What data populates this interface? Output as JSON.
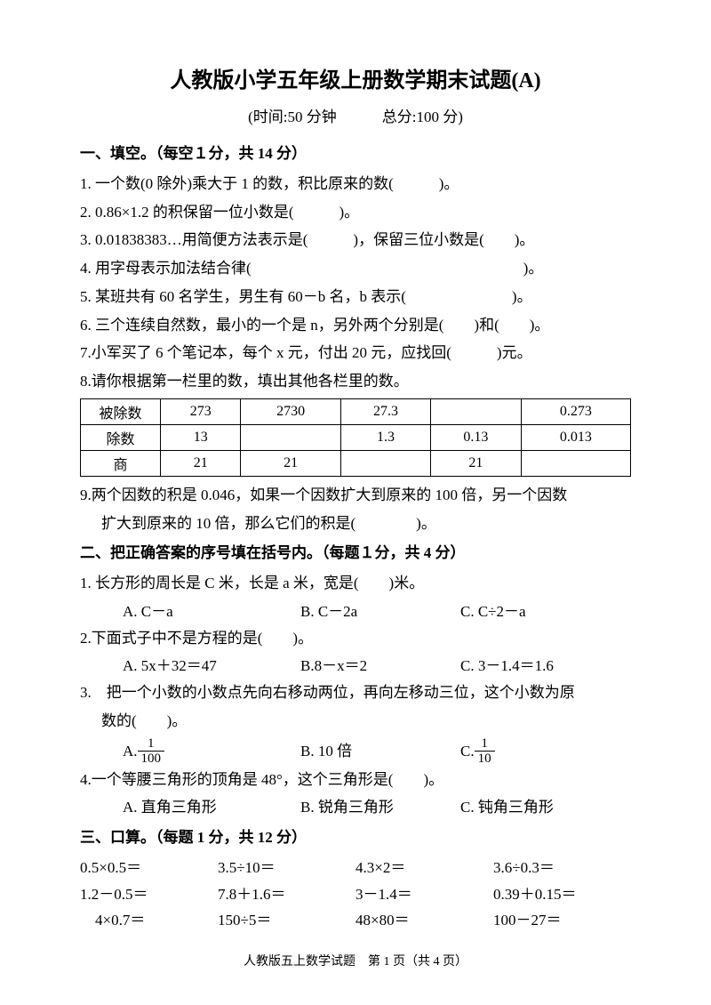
{
  "title": "人教版小学五年级上册数学期末试题(A)",
  "subtitle": "(时间:50 分钟　　　总分:100 分)",
  "sec1": {
    "header": "一、填空。（每空１分，共 14 分）",
    "q1": "1. 一个数(0 除外)乘大于 1 的数，积比原来的数(　　　)。",
    "q2": "2. 0.86×1.2 的积保留一位小数是(　　　)。",
    "q3": "3. 0.01838383…用简便方法表示是(　　　)，保留三位小数是(　　)。",
    "q4": "4. 用字母表示加法结合律(　　　　　　　　　　　　　　　　　　)。",
    "q5": "5. 某班共有 60 名学生，男生有 60－b 名，b 表示(　　　　　　　)。",
    "q6": "6. 三个连续自然数，最小的一个是 n，另外两个分别是(　　)和(　　)。",
    "q7": "7.小军买了 6 个笔记本，每个 x 元，付出 20 元，应找回(　　　)元。",
    "q8": "8.请你根据第一栏里的数，填出其他各栏里的数。",
    "q9a": "9.两个因数的积是 0.046，如果一个因数扩大到原来的 100 倍，另一个因数",
    "q9b": "扩大到原来的 10 倍，那么它们的积是(　　　　)。"
  },
  "table": {
    "r1": [
      "被除数",
      "273",
      "2730",
      "27.3",
      "",
      "0.273"
    ],
    "r2": [
      "除数",
      "13",
      "",
      "1.3",
      "0.13",
      "0.013"
    ],
    "r3": [
      "商",
      "21",
      "21",
      "",
      "21",
      ""
    ]
  },
  "sec2": {
    "header": "二、把正确答案的序号填在括号内。（每题１分，共 4 分）",
    "q1": "1. 长方形的周长是 C 米，长是 a 米，宽是(　　)米。",
    "q1a": "A. C－a",
    "q1b": "B. C－2a",
    "q1c": "C. C÷2－a",
    "q2": "2.下面式子中不是方程的是(　　)。",
    "q2a": "A. 5x＋32＝47",
    "q2b": "B.8－x＝2",
    "q2c": "C. 3－1.4＝1.6",
    "q3a": "3.　把一个小数的小数点先向右移动两位，再向左移动三位，这个小数为原",
    "q3b": "数的(　　)。",
    "q3optA": "A. ",
    "q3optB": "B. 10 倍",
    "q3optC": "C. ",
    "frac1n": "1",
    "frac1d": "100",
    "frac2n": "1",
    "frac2d": "10",
    "q4": "4.一个等腰三角形的顶角是 48°，这个三角形是(　　)。",
    "q4a": "A. 直角三角形",
    "q4b": "B. 锐角三角形",
    "q4c": "C. 钝角三角形"
  },
  "sec3": {
    "header": "三、口算。（每题 1 分，共 12 分）",
    "r1": [
      "0.5×0.5＝",
      "3.5÷10＝",
      "4.3×2＝",
      "3.6÷0.3＝"
    ],
    "r2": [
      "1.2－0.5＝",
      "7.8＋1.6＝",
      "3－1.4＝",
      "0.39＋0.15＝"
    ],
    "r3": [
      "　4×0.7＝",
      "150÷5＝",
      "48×80＝",
      "100－27＝"
    ]
  },
  "footer": "人教版五上数学试题　第 1 页（共 4 页）"
}
